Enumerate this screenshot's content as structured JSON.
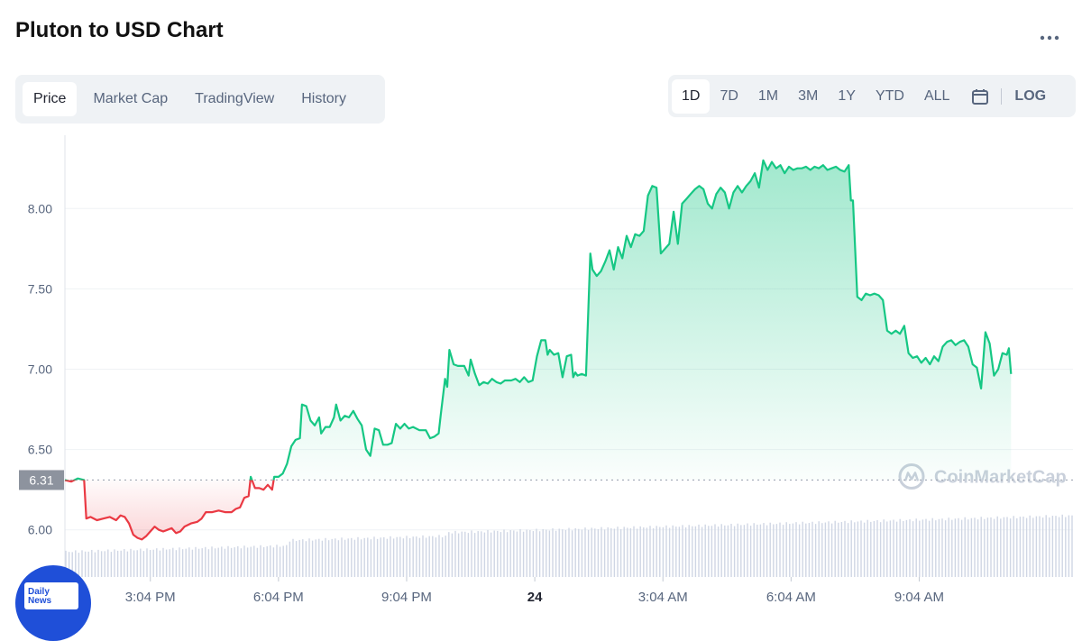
{
  "header": {
    "title": "Pluton to USD Chart",
    "more_icon": "more-horizontal-icon"
  },
  "tabs": [
    {
      "label": "Price",
      "active": true
    },
    {
      "label": "Market Cap",
      "active": false
    },
    {
      "label": "TradingView",
      "active": false
    },
    {
      "label": "History",
      "active": false
    }
  ],
  "ranges": [
    {
      "label": "1D",
      "active": true
    },
    {
      "label": "7D",
      "active": false
    },
    {
      "label": "1M",
      "active": false
    },
    {
      "label": "3M",
      "active": false
    },
    {
      "label": "1Y",
      "active": false
    },
    {
      "label": "YTD",
      "active": false
    },
    {
      "label": "ALL",
      "active": false
    }
  ],
  "calendar_icon": "calendar-icon",
  "log_label": "LOG",
  "watermark": "CoinMarketCap",
  "badge": {
    "line1": "Daily",
    "line2": "News"
  },
  "colors": {
    "up": "#16c784",
    "down": "#ea3943",
    "volume": "#cfd6e4",
    "grid": "#eff2f5",
    "axis_text": "#58667e"
  },
  "chart_data": {
    "type": "line",
    "open_price": 6.31,
    "open_price_label": "6.31",
    "y_ticks": [
      "6.00",
      "6.50",
      "7.00",
      "7.50",
      "8.00"
    ],
    "ylim": [
      5.83,
      8.4
    ],
    "x_ticks": [
      "3:04 PM",
      "6:04 PM",
      "9:04 PM",
      "24",
      "3:04 AM",
      "6:04 AM",
      "9:04 AM"
    ],
    "x_tick_hours": [
      3.0,
      6.0,
      9.0,
      12.0,
      15.0,
      18.0,
      21.0
    ],
    "xlim": [
      1.0,
      24.6
    ],
    "points": [
      [
        1.0,
        6.31
      ],
      [
        1.15,
        6.3
      ],
      [
        1.3,
        6.32
      ],
      [
        1.45,
        6.31
      ],
      [
        1.5,
        6.07
      ],
      [
        1.6,
        6.08
      ],
      [
        1.75,
        6.06
      ],
      [
        1.9,
        6.07
      ],
      [
        2.05,
        6.08
      ],
      [
        2.2,
        6.06
      ],
      [
        2.3,
        6.09
      ],
      [
        2.4,
        6.08
      ],
      [
        2.5,
        6.04
      ],
      [
        2.6,
        5.97
      ],
      [
        2.7,
        5.95
      ],
      [
        2.8,
        5.94
      ],
      [
        2.9,
        5.96
      ],
      [
        3.0,
        5.99
      ],
      [
        3.1,
        6.02
      ],
      [
        3.2,
        6.0
      ],
      [
        3.3,
        5.99
      ],
      [
        3.4,
        6.0
      ],
      [
        3.5,
        6.01
      ],
      [
        3.6,
        5.98
      ],
      [
        3.7,
        5.99
      ],
      [
        3.8,
        6.02
      ],
      [
        3.95,
        6.04
      ],
      [
        4.1,
        6.05
      ],
      [
        4.2,
        6.07
      ],
      [
        4.3,
        6.11
      ],
      [
        4.45,
        6.11
      ],
      [
        4.6,
        6.12
      ],
      [
        4.75,
        6.11
      ],
      [
        4.9,
        6.11
      ],
      [
        5.0,
        6.13
      ],
      [
        5.1,
        6.14
      ],
      [
        5.2,
        6.2
      ],
      [
        5.3,
        6.21
      ],
      [
        5.35,
        6.33
      ],
      [
        5.45,
        6.26
      ],
      [
        5.55,
        6.26
      ],
      [
        5.65,
        6.25
      ],
      [
        5.75,
        6.28
      ],
      [
        5.85,
        6.25
      ],
      [
        5.9,
        6.33
      ],
      [
        6.0,
        6.33
      ],
      [
        6.1,
        6.35
      ],
      [
        6.2,
        6.41
      ],
      [
        6.3,
        6.52
      ],
      [
        6.4,
        6.56
      ],
      [
        6.5,
        6.57
      ],
      [
        6.55,
        6.78
      ],
      [
        6.65,
        6.77
      ],
      [
        6.75,
        6.68
      ],
      [
        6.85,
        6.65
      ],
      [
        6.95,
        6.7
      ],
      [
        7.0,
        6.6
      ],
      [
        7.1,
        6.64
      ],
      [
        7.2,
        6.64
      ],
      [
        7.3,
        6.7
      ],
      [
        7.35,
        6.78
      ],
      [
        7.45,
        6.68
      ],
      [
        7.55,
        6.71
      ],
      [
        7.65,
        6.7
      ],
      [
        7.75,
        6.74
      ],
      [
        7.85,
        6.69
      ],
      [
        7.95,
        6.65
      ],
      [
        8.05,
        6.5
      ],
      [
        8.15,
        6.46
      ],
      [
        8.25,
        6.63
      ],
      [
        8.35,
        6.62
      ],
      [
        8.45,
        6.53
      ],
      [
        8.55,
        6.53
      ],
      [
        8.65,
        6.54
      ],
      [
        8.75,
        6.66
      ],
      [
        8.85,
        6.63
      ],
      [
        8.95,
        6.66
      ],
      [
        9.05,
        6.63
      ],
      [
        9.15,
        6.64
      ],
      [
        9.3,
        6.62
      ],
      [
        9.45,
        6.62
      ],
      [
        9.55,
        6.57
      ],
      [
        9.65,
        6.58
      ],
      [
        9.75,
        6.6
      ],
      [
        9.8,
        6.72
      ],
      [
        9.9,
        6.94
      ],
      [
        9.95,
        6.89
      ],
      [
        10.0,
        7.12
      ],
      [
        10.1,
        7.03
      ],
      [
        10.2,
        7.02
      ],
      [
        10.35,
        7.02
      ],
      [
        10.45,
        6.96
      ],
      [
        10.5,
        7.06
      ],
      [
        10.6,
        6.97
      ],
      [
        10.7,
        6.9
      ],
      [
        10.8,
        6.92
      ],
      [
        10.9,
        6.91
      ],
      [
        11.0,
        6.94
      ],
      [
        11.1,
        6.92
      ],
      [
        11.2,
        6.91
      ],
      [
        11.3,
        6.93
      ],
      [
        11.45,
        6.93
      ],
      [
        11.55,
        6.94
      ],
      [
        11.65,
        6.92
      ],
      [
        11.75,
        6.95
      ],
      [
        11.85,
        6.92
      ],
      [
        11.95,
        6.93
      ],
      [
        12.05,
        7.08
      ],
      [
        12.15,
        7.18
      ],
      [
        12.25,
        7.18
      ],
      [
        12.3,
        7.09
      ],
      [
        12.35,
        7.12
      ],
      [
        12.45,
        7.09
      ],
      [
        12.55,
        7.1
      ],
      [
        12.65,
        6.95
      ],
      [
        12.75,
        7.08
      ],
      [
        12.85,
        7.09
      ],
      [
        12.9,
        6.95
      ],
      [
        12.95,
        6.98
      ],
      [
        13.0,
        6.96
      ],
      [
        13.1,
        6.97
      ],
      [
        13.2,
        6.96
      ],
      [
        13.3,
        7.72
      ],
      [
        13.35,
        7.62
      ],
      [
        13.45,
        7.58
      ],
      [
        13.55,
        7.61
      ],
      [
        13.65,
        7.67
      ],
      [
        13.75,
        7.74
      ],
      [
        13.85,
        7.62
      ],
      [
        13.95,
        7.76
      ],
      [
        14.05,
        7.69
      ],
      [
        14.15,
        7.83
      ],
      [
        14.25,
        7.76
      ],
      [
        14.35,
        7.84
      ],
      [
        14.45,
        7.83
      ],
      [
        14.55,
        7.86
      ],
      [
        14.65,
        8.08
      ],
      [
        14.75,
        8.14
      ],
      [
        14.85,
        8.13
      ],
      [
        14.95,
        7.72
      ],
      [
        15.05,
        7.75
      ],
      [
        15.15,
        7.78
      ],
      [
        15.25,
        7.98
      ],
      [
        15.35,
        7.78
      ],
      [
        15.45,
        8.03
      ],
      [
        15.55,
        8.06
      ],
      [
        15.65,
        8.09
      ],
      [
        15.75,
        8.12
      ],
      [
        15.85,
        8.14
      ],
      [
        15.95,
        8.12
      ],
      [
        16.05,
        8.03
      ],
      [
        16.15,
        8.0
      ],
      [
        16.25,
        8.09
      ],
      [
        16.35,
        8.13
      ],
      [
        16.45,
        8.1
      ],
      [
        16.55,
        8.0
      ],
      [
        16.65,
        8.1
      ],
      [
        16.75,
        8.14
      ],
      [
        16.85,
        8.1
      ],
      [
        16.95,
        8.14
      ],
      [
        17.05,
        8.17
      ],
      [
        17.15,
        8.22
      ],
      [
        17.25,
        8.13
      ],
      [
        17.35,
        8.3
      ],
      [
        17.45,
        8.24
      ],
      [
        17.55,
        8.29
      ],
      [
        17.65,
        8.25
      ],
      [
        17.75,
        8.27
      ],
      [
        17.85,
        8.22
      ],
      [
        17.95,
        8.26
      ],
      [
        18.05,
        8.24
      ],
      [
        18.15,
        8.25
      ],
      [
        18.25,
        8.25
      ],
      [
        18.35,
        8.26
      ],
      [
        18.45,
        8.24
      ],
      [
        18.55,
        8.26
      ],
      [
        18.65,
        8.25
      ],
      [
        18.75,
        8.27
      ],
      [
        18.85,
        8.24
      ],
      [
        18.95,
        8.25
      ],
      [
        19.05,
        8.26
      ],
      [
        19.15,
        8.24
      ],
      [
        19.25,
        8.23
      ],
      [
        19.35,
        8.27
      ],
      [
        19.4,
        8.05
      ],
      [
        19.45,
        8.05
      ],
      [
        19.55,
        7.45
      ],
      [
        19.65,
        7.43
      ],
      [
        19.75,
        7.47
      ],
      [
        19.85,
        7.46
      ],
      [
        19.95,
        7.47
      ],
      [
        20.05,
        7.46
      ],
      [
        20.15,
        7.43
      ],
      [
        20.25,
        7.24
      ],
      [
        20.35,
        7.22
      ],
      [
        20.45,
        7.24
      ],
      [
        20.55,
        7.22
      ],
      [
        20.65,
        7.27
      ],
      [
        20.75,
        7.1
      ],
      [
        20.85,
        7.07
      ],
      [
        20.95,
        7.08
      ],
      [
        21.05,
        7.04
      ],
      [
        21.15,
        7.07
      ],
      [
        21.25,
        7.03
      ],
      [
        21.35,
        7.08
      ],
      [
        21.45,
        7.05
      ],
      [
        21.55,
        7.14
      ],
      [
        21.65,
        7.17
      ],
      [
        21.75,
        7.18
      ],
      [
        21.85,
        7.15
      ],
      [
        21.95,
        7.17
      ],
      [
        22.05,
        7.18
      ],
      [
        22.15,
        7.14
      ],
      [
        22.25,
        7.03
      ],
      [
        22.35,
        7.01
      ],
      [
        22.45,
        6.88
      ],
      [
        22.55,
        7.23
      ],
      [
        22.65,
        7.16
      ],
      [
        22.75,
        6.96
      ],
      [
        22.85,
        7.0
      ],
      [
        22.95,
        7.1
      ],
      [
        23.05,
        7.09
      ],
      [
        23.1,
        7.13
      ],
      [
        23.15,
        6.97
      ]
    ]
  }
}
